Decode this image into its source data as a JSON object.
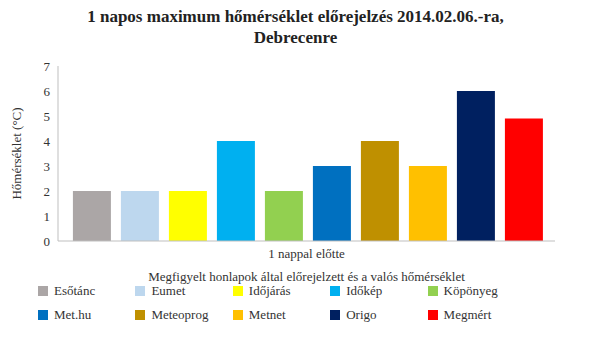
{
  "chart_data": {
    "type": "bar",
    "title": "1 napos maximum hőmérséklet előrejelzés 2014.02.06.-ra, Debrecenre",
    "categories": [
      "1 nappal előtte"
    ],
    "x_label": "Megfigyelt honlapok által előrejelzett  és a valós hőmérséklet",
    "y_label": "Hőmérséklet (°C)",
    "series": [
      {
        "name": "Esőtánc",
        "color": "#aba6a6",
        "values": [
          2
        ]
      },
      {
        "name": "Eumet",
        "color": "#bdd7ee",
        "values": [
          2
        ]
      },
      {
        "name": "Időjárás",
        "color": "#ffff00",
        "values": [
          2
        ]
      },
      {
        "name": "Időkép",
        "color": "#00b0f0",
        "values": [
          4
        ]
      },
      {
        "name": "Köpönyeg",
        "color": "#92d050",
        "values": [
          2
        ]
      },
      {
        "name": "Met.hu",
        "color": "#0070c0",
        "values": [
          3
        ]
      },
      {
        "name": "Meteoprog",
        "color": "#bf9000",
        "values": [
          4
        ]
      },
      {
        "name": "Metnet",
        "color": "#ffc000",
        "values": [
          3
        ]
      },
      {
        "name": "Origo",
        "color": "#002060",
        "values": [
          6
        ]
      },
      {
        "name": "Megmért",
        "color": "#ff0000",
        "values": [
          4.9
        ]
      }
    ],
    "ylim": [
      0,
      7
    ],
    "yticks": [
      0,
      1,
      2,
      3,
      4,
      5,
      6,
      7
    ],
    "grid": false,
    "legend": "bottom"
  }
}
